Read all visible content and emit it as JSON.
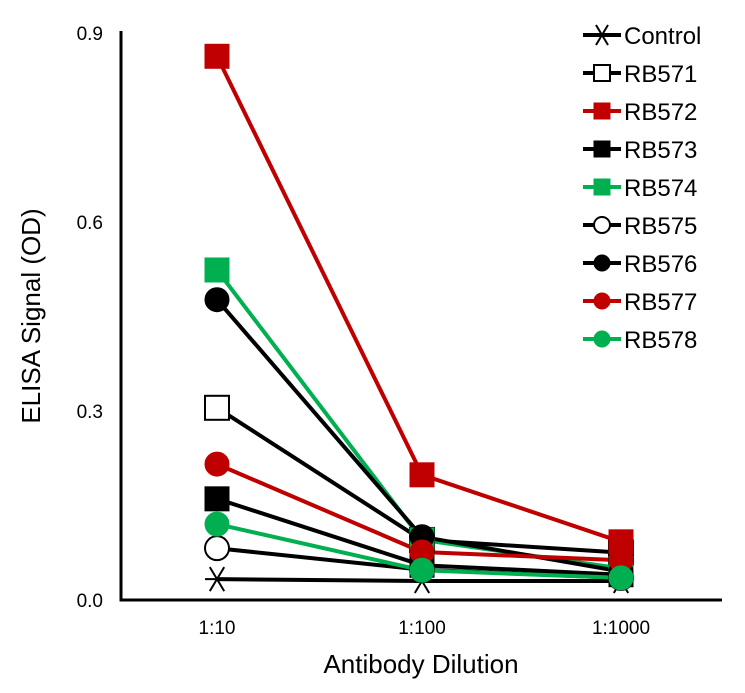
{
  "chart_data": {
    "type": "line",
    "title": "",
    "xlabel": "Antibody Dilution",
    "ylabel": "ELISA Signal (OD)",
    "categories": [
      "1:10",
      "1:100",
      "1:1000"
    ],
    "ylim": [
      0,
      0.9
    ],
    "yticks": [
      0.0,
      0.3,
      0.6,
      0.9
    ],
    "ytick_labels": [
      "0.0",
      "0.3",
      "0.6",
      "0.9"
    ],
    "grid": false,
    "legend_position": "top-right",
    "series": [
      {
        "name": "Control",
        "color": "#000000",
        "marker": "asterisk",
        "fill": "none",
        "values": [
          0.033,
          0.03,
          0.03
        ]
      },
      {
        "name": "RB571",
        "color": "#000000",
        "marker": "square",
        "fill": "open",
        "values": [
          0.304,
          0.095,
          0.075
        ]
      },
      {
        "name": "RB572",
        "color": "#c00000",
        "marker": "square",
        "fill": "filled",
        "values": [
          0.86,
          0.198,
          0.092
        ]
      },
      {
        "name": "RB573",
        "color": "#000000",
        "marker": "square",
        "fill": "filled",
        "values": [
          0.16,
          0.055,
          0.04
        ]
      },
      {
        "name": "RB574",
        "color": "#00b050",
        "marker": "square",
        "fill": "filled",
        "values": [
          0.522,
          0.095,
          0.05
        ]
      },
      {
        "name": "RB575",
        "color": "#000000",
        "marker": "circle",
        "fill": "open",
        "values": [
          0.082,
          0.048,
          0.035
        ]
      },
      {
        "name": "RB576",
        "color": "#000000",
        "marker": "circle",
        "fill": "filled",
        "values": [
          0.475,
          0.1,
          0.045
        ]
      },
      {
        "name": "RB577",
        "color": "#c00000",
        "marker": "circle",
        "fill": "filled",
        "values": [
          0.215,
          0.076,
          0.063
        ]
      },
      {
        "name": "RB578",
        "color": "#00b050",
        "marker": "circle",
        "fill": "filled",
        "values": [
          0.12,
          0.047,
          0.035
        ]
      }
    ]
  }
}
